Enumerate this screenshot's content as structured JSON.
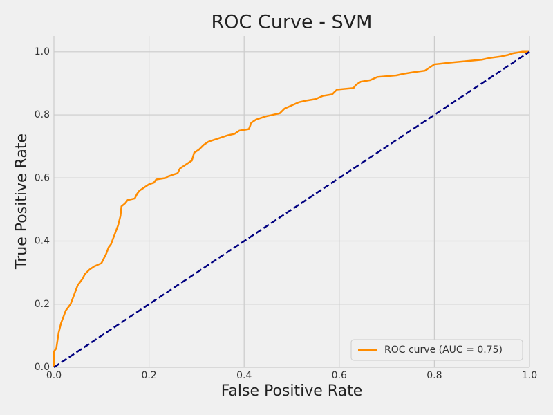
{
  "chart_data": {
    "type": "line",
    "title": "ROC Curve - SVM",
    "xlabel": "False Positive Rate",
    "ylabel": "True Positive Rate",
    "xlim": [
      0,
      1
    ],
    "ylim": [
      0,
      1.05
    ],
    "xticks": [
      {
        "value": 0,
        "label": "0.0"
      },
      0.2,
      0.4,
      0.6,
      0.8,
      {
        "value": 1,
        "label": "1.0"
      }
    ],
    "yticks": [
      {
        "value": 0,
        "label": "0.0"
      },
      0.2,
      0.4,
      0.6,
      0.8,
      {
        "value": 1,
        "label": "1.0"
      }
    ],
    "grid": true,
    "legend": "lower right",
    "series": [
      {
        "name": "ROC curve (AUC = 0.75)",
        "color": "#ff8c00",
        "style": "solid",
        "x": [
          0,
          0,
          0.005,
          0.01,
          0.015,
          0.02,
          0.025,
          0.03,
          0.035,
          0.04,
          0.045,
          0.05,
          0.06,
          0.065,
          0.075,
          0.085,
          0.1,
          0.105,
          0.11,
          0.115,
          0.12,
          0.125,
          0.13,
          0.135,
          0.14,
          0.142,
          0.15,
          0.155,
          0.17,
          0.175,
          0.18,
          0.19,
          0.2,
          0.21,
          0.215,
          0.235,
          0.24,
          0.25,
          0.26,
          0.265,
          0.275,
          0.29,
          0.295,
          0.305,
          0.315,
          0.325,
          0.335,
          0.345,
          0.365,
          0.38,
          0.39,
          0.41,
          0.415,
          0.425,
          0.435,
          0.445,
          0.46,
          0.475,
          0.485,
          0.5,
          0.515,
          0.53,
          0.55,
          0.565,
          0.585,
          0.595,
          0.63,
          0.635,
          0.645,
          0.665,
          0.68,
          0.72,
          0.735,
          0.755,
          0.78,
          0.79,
          0.8,
          0.83,
          0.865,
          0.9,
          0.915,
          0.94,
          0.955,
          0.965,
          0.985,
          1
        ],
        "values": [
          0,
          0.05,
          0.06,
          0.11,
          0.14,
          0.16,
          0.18,
          0.19,
          0.2,
          0.22,
          0.24,
          0.26,
          0.28,
          0.295,
          0.31,
          0.32,
          0.33,
          0.345,
          0.36,
          0.38,
          0.39,
          0.41,
          0.43,
          0.45,
          0.48,
          0.51,
          0.52,
          0.53,
          0.535,
          0.55,
          0.56,
          0.57,
          0.58,
          0.585,
          0.595,
          0.6,
          0.605,
          0.61,
          0.615,
          0.63,
          0.64,
          0.655,
          0.68,
          0.69,
          0.705,
          0.715,
          0.72,
          0.725,
          0.735,
          0.74,
          0.75,
          0.755,
          0.775,
          0.785,
          0.79,
          0.795,
          0.8,
          0.805,
          0.82,
          0.83,
          0.84,
          0.845,
          0.85,
          0.86,
          0.865,
          0.88,
          0.885,
          0.895,
          0.905,
          0.91,
          0.92,
          0.925,
          0.93,
          0.935,
          0.94,
          0.95,
          0.96,
          0.965,
          0.97,
          0.975,
          0.98,
          0.985,
          0.99,
          0.995,
          1,
          1
        ]
      },
      {
        "color": "#000080",
        "style": "dashed",
        "x": [
          0,
          1
        ],
        "values": [
          0,
          1
        ]
      }
    ]
  }
}
